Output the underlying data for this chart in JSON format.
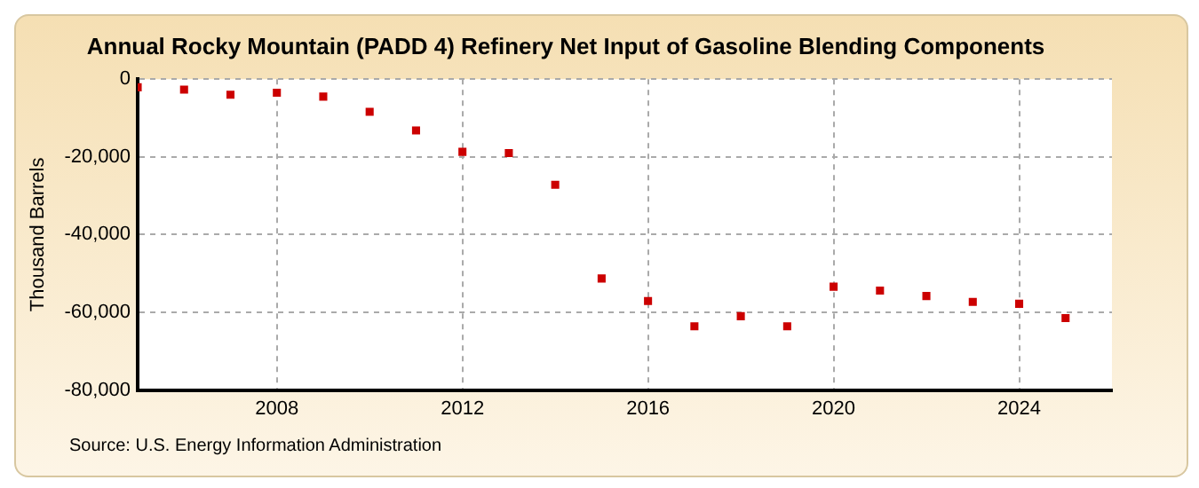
{
  "chart_data": {
    "type": "scatter",
    "title": "Annual Rocky Mountain (PADD 4) Refinery Net Input of Gasoline Blending Components",
    "ylabel": "Thousand Barrels",
    "x": [
      2005,
      2006,
      2007,
      2008,
      2009,
      2010,
      2011,
      2012,
      2013,
      2014,
      2015,
      2016,
      2017,
      2018,
      2019,
      2020,
      2021,
      2022,
      2023,
      2024,
      2025
    ],
    "series": [
      {
        "color": "#cc0000",
        "values": [
          -2100,
          -2700,
          -4000,
          -3500,
          -4500,
          -8400,
          -13200,
          -18700,
          -19000,
          -27200,
          -51300,
          -57100,
          -63600,
          -61000,
          -63600,
          -53400,
          -54400,
          -55800,
          -57300,
          -57800,
          -61500
        ]
      }
    ],
    "xlim": [
      2005,
      2026
    ],
    "xticks": [
      2008,
      2012,
      2016,
      2020,
      2024
    ],
    "ylim": [
      -80000,
      0
    ],
    "yticks": [
      {
        "value": -80000,
        "label": "-80,000"
      },
      {
        "value": -60000,
        "label": "-60,000"
      },
      {
        "value": -40000,
        "label": "-40,000"
      },
      {
        "value": -20000,
        "label": "-20,000"
      },
      0
    ],
    "grid": true,
    "legend": false,
    "marker": "square",
    "annotations": [
      "Source: U.S. Energy Information Administration"
    ]
  }
}
